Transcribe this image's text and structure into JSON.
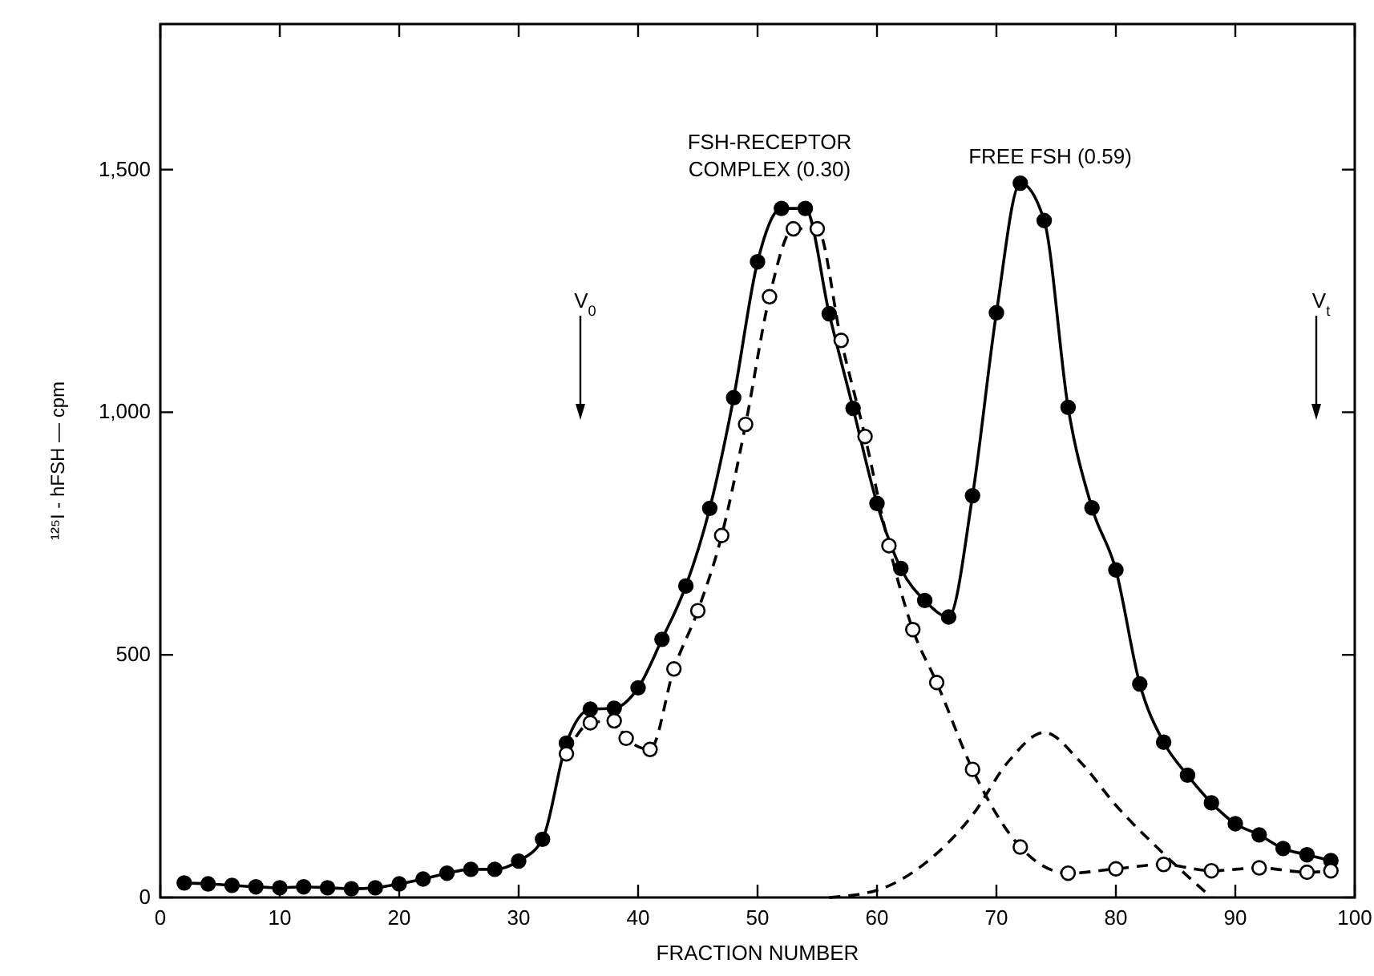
{
  "chart_data": {
    "type": "line",
    "xlabel": "FRACTION NUMBER",
    "ylabel": "¹²⁵I - hFSH — cpm",
    "xlim": [
      0,
      100
    ],
    "ylim": [
      0,
      1800
    ],
    "xticks": [
      0,
      10,
      20,
      30,
      40,
      50,
      60,
      70,
      80,
      90,
      100
    ],
    "yticks": [
      0,
      500,
      {
        "value": 1000,
        "label": "1,000"
      },
      {
        "value": 1500,
        "label": "1,500"
      }
    ],
    "grid": false,
    "series": [
      {
        "color": "#000000",
        "marker": "circle",
        "line_style": "solid",
        "x": [
          2,
          4,
          6,
          8,
          10,
          12,
          14,
          16,
          18,
          20,
          22,
          24,
          26,
          28,
          30,
          32,
          34,
          36,
          38,
          40,
          42,
          44,
          46,
          48,
          50,
          52,
          54,
          56,
          58,
          60,
          62,
          64,
          66,
          68,
          70,
          72,
          74,
          76,
          78,
          80,
          82,
          84,
          86,
          88,
          90,
          92,
          94,
          96,
          98
        ],
        "values": [
          30,
          28,
          25,
          22,
          20,
          22,
          20,
          18,
          20,
          28,
          38,
          50,
          58,
          58,
          75,
          120,
          318,
          388,
          390,
          432,
          532,
          642,
          802,
          1030,
          1310,
          1420,
          1420,
          1203,
          1008,
          812,
          678,
          612,
          578,
          828,
          1205,
          1472,
          1395,
          1010,
          803,
          675,
          440,
          320,
          252,
          195,
          152,
          129,
          101,
          88,
          76
        ]
      },
      {
        "color": "#000000",
        "marker": "circle",
        "line_style": "dashed",
        "x": [
          34,
          36,
          38,
          39,
          41,
          43,
          45,
          47,
          49,
          51,
          53,
          55,
          57,
          59,
          61,
          63,
          65,
          68,
          72,
          76,
          80,
          84,
          88,
          92,
          96,
          98
        ],
        "values": [
          296,
          360,
          364,
          328,
          305,
          471,
          591,
          746,
          975,
          1238,
          1378,
          1378,
          1148,
          950,
          725,
          552,
          443,
          264,
          104,
          50,
          59,
          68,
          55,
          61,
          52,
          55
        ]
      },
      {
        "color": "#000000",
        "marker": "none",
        "line_style": "dashed",
        "x": [
          56,
          60,
          64,
          68,
          71,
          74,
          77,
          80,
          84,
          88
        ],
        "values": [
          0,
          15,
          70,
          170,
          280,
          340,
          280,
          190,
          90,
          0
        ]
      }
    ],
    "annotations": [
      "FSH-RECEPTOR\nCOMPLEX (0.30)",
      "FREE FSH (0.59)",
      "V$_{0}$",
      "V$_{t}$"
    ]
  }
}
